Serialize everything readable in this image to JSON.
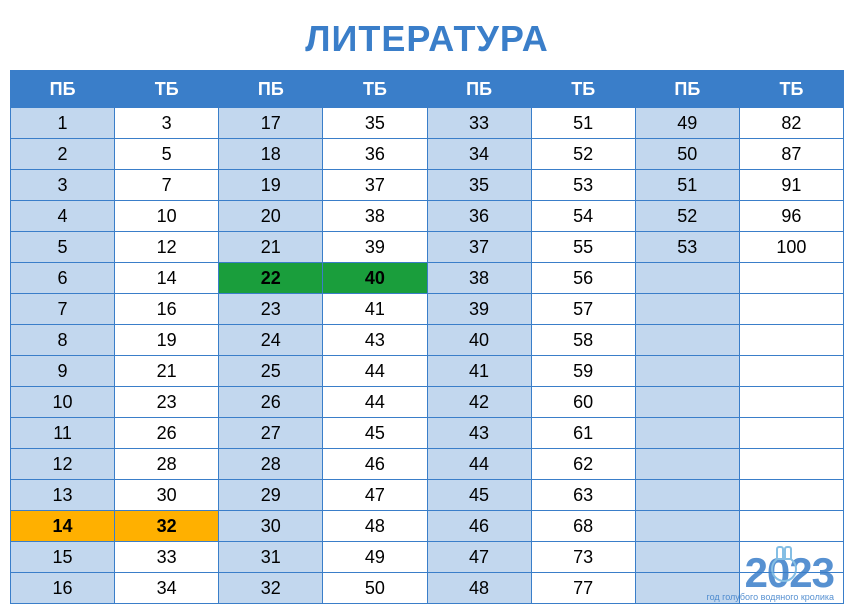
{
  "title": "ЛИТЕРАТУРА",
  "columns": [
    "ПБ",
    "ТБ",
    "ПБ",
    "ТБ",
    "ПБ",
    "ТБ",
    "ПБ",
    "ТБ"
  ],
  "rows": [
    [
      "1",
      "3",
      "17",
      "35",
      "33",
      "51",
      "49",
      "82"
    ],
    [
      "2",
      "5",
      "18",
      "36",
      "34",
      "52",
      "50",
      "87"
    ],
    [
      "3",
      "7",
      "19",
      "37",
      "35",
      "53",
      "51",
      "91"
    ],
    [
      "4",
      "10",
      "20",
      "38",
      "36",
      "54",
      "52",
      "96"
    ],
    [
      "5",
      "12",
      "21",
      "39",
      "37",
      "55",
      "53",
      "100"
    ],
    [
      "6",
      "14",
      "22",
      "40",
      "38",
      "56",
      "",
      ""
    ],
    [
      "7",
      "16",
      "23",
      "41",
      "39",
      "57",
      "",
      ""
    ],
    [
      "8",
      "19",
      "24",
      "43",
      "40",
      "58",
      "",
      ""
    ],
    [
      "9",
      "21",
      "25",
      "44",
      "41",
      "59",
      "",
      ""
    ],
    [
      "10",
      "23",
      "26",
      "44",
      "42",
      "60",
      "",
      ""
    ],
    [
      "11",
      "26",
      "27",
      "45",
      "43",
      "61",
      "",
      ""
    ],
    [
      "12",
      "28",
      "28",
      "46",
      "44",
      "62",
      "",
      ""
    ],
    [
      "13",
      "30",
      "29",
      "47",
      "45",
      "63",
      "",
      ""
    ],
    [
      "14",
      "32",
      "30",
      "48",
      "46",
      "68",
      "",
      ""
    ],
    [
      "15",
      "33",
      "31",
      "49",
      "47",
      "73",
      "",
      ""
    ],
    [
      "16",
      "34",
      "32",
      "50",
      "48",
      "77",
      "",
      ""
    ]
  ],
  "highlights": {
    "orange": [
      [
        13,
        0
      ],
      [
        13,
        1
      ]
    ],
    "green": [
      [
        5,
        2
      ],
      [
        5,
        3
      ]
    ]
  },
  "styling": {
    "header_bg": "#3a7ec9",
    "header_fg": "#ffffff",
    "pb_bg": "#c2d7ee",
    "tb_bg": "#ffffff",
    "border_color": "#3a7ec9",
    "title_color": "#3a7ec9",
    "title_fontsize": 36,
    "cell_fontsize": 18,
    "orange": "#ffb000",
    "green": "#1a9e3c"
  },
  "watermark": {
    "year": "2023",
    "sub": "год голубого водяного кролика"
  }
}
